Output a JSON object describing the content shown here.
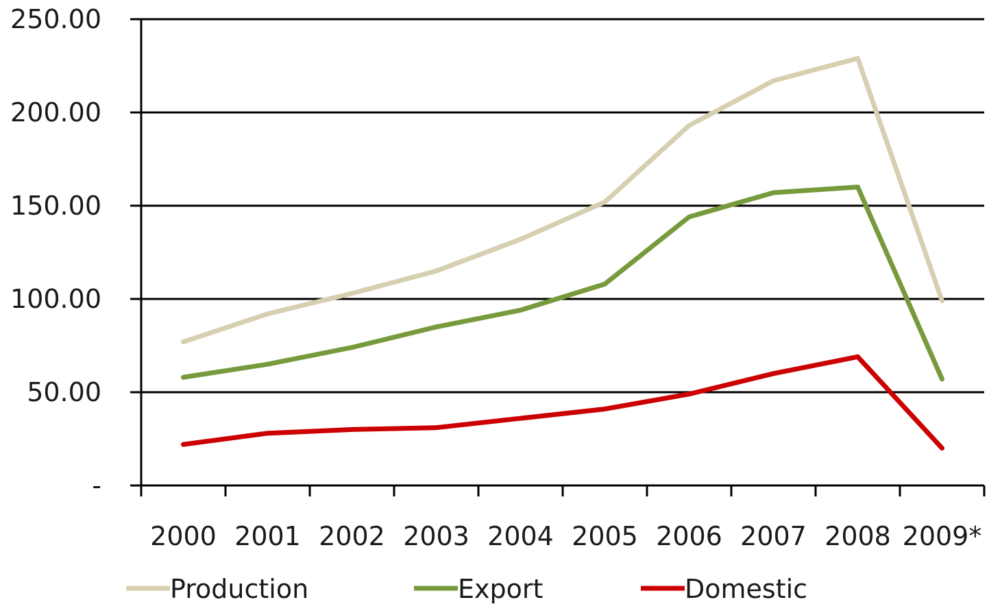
{
  "chart_data": {
    "type": "line",
    "title": "",
    "xlabel": "",
    "ylabel": "",
    "categories": [
      "2000",
      "2001",
      "2002",
      "2003",
      "2004",
      "2005",
      "2006",
      "2007",
      "2008",
      "2009*"
    ],
    "ylim": [
      0,
      250
    ],
    "yticks": [
      {
        "value": 0,
        "label": "-"
      },
      {
        "value": 50,
        "label": "50.00"
      },
      {
        "value": 100,
        "label": "100.00"
      },
      {
        "value": 150,
        "label": "150.00"
      },
      {
        "value": 200,
        "label": "200.00"
      },
      {
        "value": 250,
        "label": "250.00"
      }
    ],
    "grid": true,
    "legend_position": "bottom",
    "series": [
      {
        "name": "Production",
        "color": "#d6cfb0",
        "values": [
          77,
          92,
          103,
          115,
          132,
          152,
          193,
          217,
          229,
          99
        ]
      },
      {
        "name": "Export",
        "color": "#769a3c",
        "values": [
          58,
          65,
          74,
          85,
          94,
          108,
          144,
          157,
          160,
          57
        ]
      },
      {
        "name": "Domestic",
        "color": "#cc0000",
        "values": [
          22,
          28,
          30,
          31,
          36,
          41,
          49,
          60,
          69,
          20
        ]
      }
    ]
  }
}
